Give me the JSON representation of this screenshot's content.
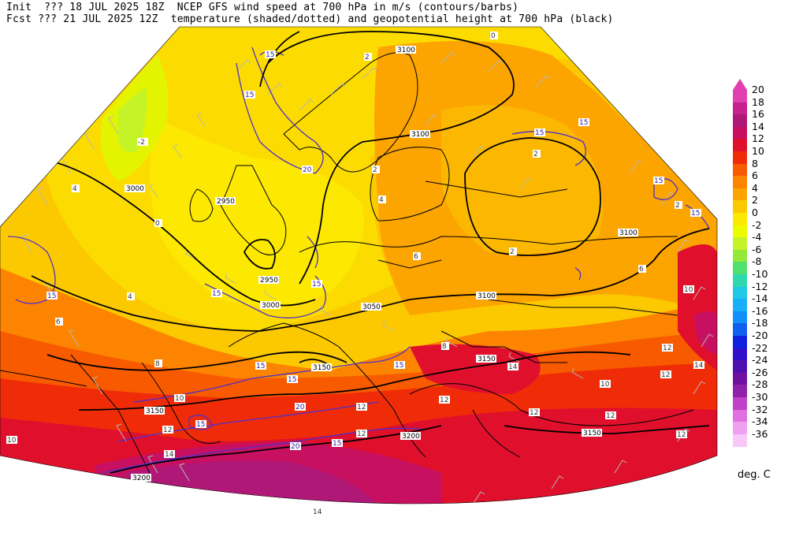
{
  "header": {
    "line1": "Init  ??? 18 JUL 2025 18Z  NCEP GFS wind speed at 700 hPa in m/s (contours/barbs)",
    "line2": "Fcst ??? 21 JUL 2025 12Z  temperature (shaded/dotted) and geopotential height at 700 hPa (black)"
  },
  "legend": {
    "units": "deg. C",
    "entries": [
      {
        "label": "20",
        "color": "#e040b0"
      },
      {
        "label": "18",
        "color": "#c8208c"
      },
      {
        "label": "16",
        "color": "#b01878"
      },
      {
        "label": "14",
        "color": "#c81060"
      },
      {
        "label": "12",
        "color": "#e0102c"
      },
      {
        "label": "10",
        "color": "#f02c08"
      },
      {
        "label": "8",
        "color": "#f85a00"
      },
      {
        "label": "6",
        "color": "#fc8400"
      },
      {
        "label": "4",
        "color": "#fca400"
      },
      {
        "label": "2",
        "color": "#fcc800"
      },
      {
        "label": "0",
        "color": "#fce800"
      },
      {
        "label": "-2",
        "color": "#ecfc00"
      },
      {
        "label": "-4",
        "color": "#c4f428"
      },
      {
        "label": "-6",
        "color": "#94e838"
      },
      {
        "label": "-8",
        "color": "#50e070"
      },
      {
        "label": "-10",
        "color": "#30d8b0"
      },
      {
        "label": "-12",
        "color": "#20c8e8"
      },
      {
        "label": "-14",
        "color": "#18b0f8"
      },
      {
        "label": "-16",
        "color": "#1090f8"
      },
      {
        "label": "-18",
        "color": "#1060f0"
      },
      {
        "label": "-20",
        "color": "#1020e0"
      },
      {
        "label": "-22",
        "color": "#3010c8"
      },
      {
        "label": "-24",
        "color": "#5010b0"
      },
      {
        "label": "-26",
        "color": "#7010a0"
      },
      {
        "label": "-28",
        "color": "#9020a8"
      },
      {
        "label": "-30",
        "color": "#c040c8"
      },
      {
        "label": "-32",
        "color": "#e070e0"
      },
      {
        "label": "-34",
        "color": "#f0a0f0"
      },
      {
        "label": "-36",
        "color": "#f8c8f8"
      }
    ],
    "top_arrow_color": "#e040b0"
  },
  "map": {
    "height_labels": [
      "3100",
      "3100",
      "3000",
      "2950",
      "2950",
      "3000",
      "3050",
      "3100",
      "3100",
      "3150",
      "3150",
      "3150",
      "3200",
      "3150",
      "3200"
    ],
    "wind_labels": [
      "15",
      "15",
      "15",
      "15",
      "15",
      "15",
      "20",
      "15",
      "15",
      "15",
      "15",
      "15",
      "15",
      "20",
      "20",
      "15",
      "15"
    ],
    "temp_labels": [
      "0",
      "2",
      "-2",
      "2",
      "2",
      "4",
      "4",
      "2",
      "0",
      "2",
      "4",
      "6",
      "6",
      "6",
      "8",
      "8",
      "10",
      "10",
      "12",
      "10",
      "12",
      "12",
      "12",
      "14",
      "12",
      "14",
      "10",
      "12",
      "12",
      "14",
      "12",
      "14",
      "12"
    ]
  }
}
